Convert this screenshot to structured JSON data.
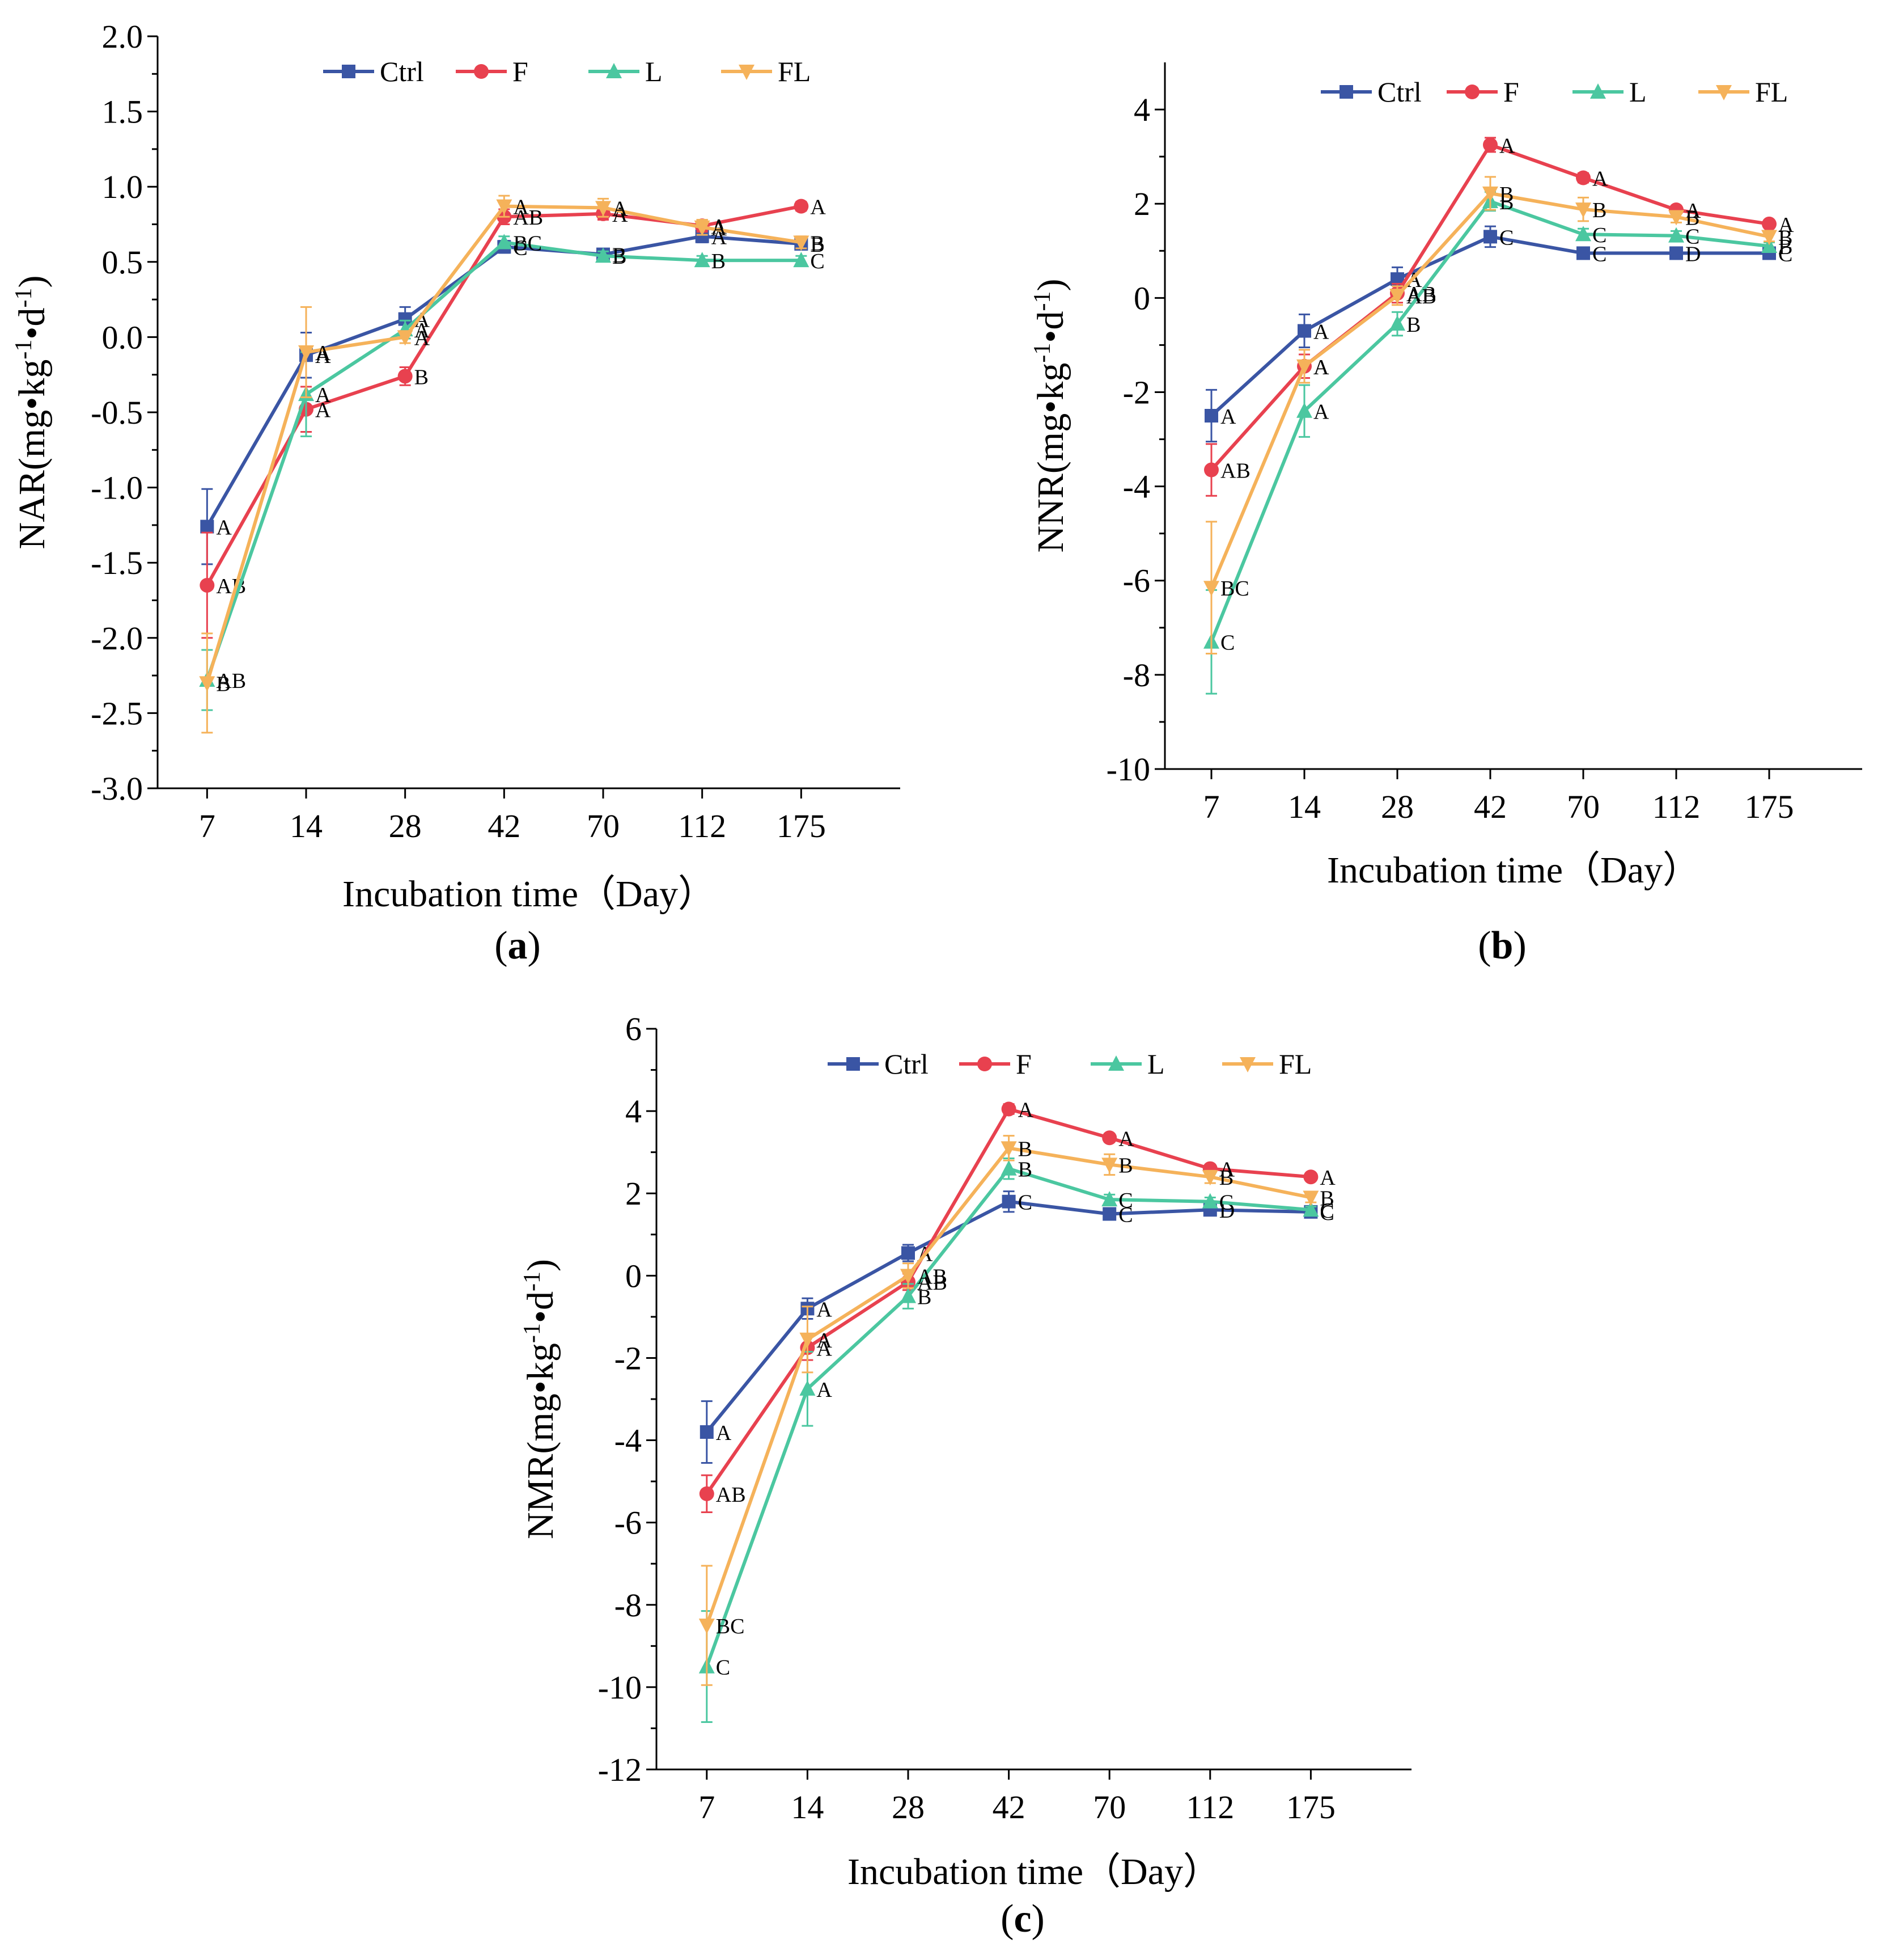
{
  "colors": {
    "Ctrl": "#3a55a4",
    "F": "#e8414f",
    "L": "#4bc7a0",
    "FL": "#f5b25a"
  },
  "legend_labels": [
    "Ctrl",
    "F",
    "L",
    "FL"
  ],
  "chart_data": [
    {
      "id": "a",
      "type": "line",
      "panel_label": "(a)",
      "panel_letter": "a",
      "xlabel": "Incubation time（Day）",
      "ylabel_parts": [
        "NAR(mg•kg",
        "-1",
        "•d",
        "-1",
        ")"
      ],
      "categories": [
        "7",
        "14",
        "28",
        "42",
        "70",
        "112",
        "175"
      ],
      "ylim": [
        -3.0,
        2.0
      ],
      "yticks": [
        "-3.0",
        "-2.5",
        "-2.0",
        "-1.5",
        "-1.0",
        "-0.5",
        "0.0",
        "0.5",
        "1.0",
        "1.5",
        "2.0"
      ],
      "ytick_values": [
        -3.0,
        -2.5,
        -2.0,
        -1.5,
        -1.0,
        -0.5,
        0.0,
        0.5,
        1.0,
        1.5,
        2.0
      ],
      "series": [
        {
          "name": "Ctrl",
          "values": [
            -1.26,
            -0.12,
            0.12,
            0.6,
            0.55,
            0.67,
            0.62
          ],
          "errors": [
            0.25,
            0.15,
            0.08,
            0.04,
            0.03,
            0.04,
            0.03
          ],
          "letters": [
            "A",
            "A",
            "A",
            "C",
            "B",
            "A",
            "B"
          ]
        },
        {
          "name": "F",
          "values": [
            -1.65,
            -0.48,
            -0.26,
            0.8,
            0.82,
            0.74,
            0.87
          ],
          "errors": [
            0.35,
            0.15,
            0.06,
            0.05,
            0.04,
            0.04,
            0.03
          ],
          "letters": [
            "AB",
            "A",
            "B",
            "AB",
            "A",
            "A",
            "A"
          ]
        },
        {
          "name": "L",
          "values": [
            -2.28,
            -0.38,
            0.05,
            0.63,
            0.54,
            0.51,
            0.51
          ],
          "errors": [
            0.2,
            0.28,
            0.06,
            0.04,
            0.03,
            0.03,
            0.03
          ],
          "letters": [
            "AB",
            "A",
            "A",
            "BC",
            "B",
            "B",
            "C"
          ]
        },
        {
          "name": "FL",
          "values": [
            -2.3,
            -0.1,
            0.0,
            0.87,
            0.86,
            0.73,
            0.63
          ],
          "errors": [
            0.33,
            0.3,
            0.04,
            0.07,
            0.06,
            0.05,
            0.04
          ],
          "letters": [
            "B",
            "A",
            "A",
            "A",
            "A",
            "A",
            "B"
          ]
        }
      ]
    },
    {
      "id": "b",
      "type": "line",
      "panel_label": "(b)",
      "panel_letter": "b",
      "xlabel": "Incubation time（Day）",
      "ylabel_parts": [
        "NNR(mg•kg",
        "-1",
        "•d",
        "-1",
        ")"
      ],
      "categories": [
        "7",
        "14",
        "28",
        "42",
        "70",
        "112",
        "175"
      ],
      "ylim": [
        -10,
        5
      ],
      "yticks": [
        "-10",
        "-8",
        "-6",
        "-4",
        "-2",
        "0",
        "2",
        "4"
      ],
      "ytick_values": [
        -10,
        -8,
        -6,
        -4,
        -2,
        0,
        2,
        4
      ],
      "series": [
        {
          "name": "Ctrl",
          "values": [
            -2.5,
            -0.7,
            0.4,
            1.3,
            0.95,
            0.95,
            0.95
          ],
          "errors": [
            0.55,
            0.35,
            0.25,
            0.22,
            0.08,
            0.08,
            0.08
          ],
          "letters": [
            "A",
            "A",
            "A",
            "C",
            "C",
            "D",
            "C"
          ]
        },
        {
          "name": "F",
          "values": [
            -3.65,
            -1.45,
            0.1,
            3.25,
            2.55,
            1.87,
            1.57
          ],
          "errors": [
            0.55,
            0.25,
            0.2,
            0.15,
            0.1,
            0.08,
            0.08
          ],
          "letters": [
            "AB",
            "A",
            "AB",
            "A",
            "A",
            "A",
            "A"
          ]
        },
        {
          "name": "L",
          "values": [
            -7.3,
            -2.4,
            -0.55,
            2.05,
            1.35,
            1.32,
            1.1
          ],
          "errors": [
            1.1,
            0.55,
            0.25,
            0.2,
            0.12,
            0.1,
            0.08
          ],
          "letters": [
            "C",
            "A",
            "B",
            "B",
            "C",
            "C",
            "B"
          ]
        },
        {
          "name": "FL",
          "values": [
            -6.15,
            -1.45,
            0.05,
            2.22,
            1.88,
            1.72,
            1.3
          ],
          "errors": [
            1.4,
            0.35,
            0.2,
            0.35,
            0.25,
            0.12,
            0.1
          ],
          "letters": [
            "BC",
            "A",
            "AB",
            "B",
            "B",
            "B",
            "B"
          ]
        }
      ]
    },
    {
      "id": "c",
      "type": "line",
      "panel_label": "(c)",
      "panel_letter": "c",
      "xlabel": "Incubation time（Day）",
      "ylabel_parts": [
        "NMR(mg•kg",
        "-1",
        "•d",
        "-1",
        ")"
      ],
      "categories": [
        "7",
        "14",
        "28",
        "42",
        "70",
        "112",
        "175"
      ],
      "ylim": [
        -12,
        6
      ],
      "yticks": [
        "-12",
        "-10",
        "-8",
        "-6",
        "-4",
        "-2",
        "0",
        "2",
        "4",
        "6"
      ],
      "ytick_values": [
        -12,
        -10,
        -8,
        -6,
        -4,
        -2,
        0,
        2,
        4,
        6
      ],
      "series": [
        {
          "name": "Ctrl",
          "values": [
            -3.8,
            -0.8,
            0.55,
            1.8,
            1.5,
            1.6,
            1.55
          ],
          "errors": [
            0.75,
            0.25,
            0.2,
            0.25,
            0.08,
            0.08,
            0.08
          ],
          "letters": [
            "A",
            "A",
            "A",
            "C",
            "C",
            "D",
            "C"
          ]
        },
        {
          "name": "F",
          "values": [
            -5.3,
            -1.75,
            -0.15,
            4.05,
            3.35,
            2.6,
            2.4
          ],
          "errors": [
            0.45,
            0.3,
            0.2,
            0.12,
            0.1,
            0.1,
            0.08
          ],
          "letters": [
            "AB",
            "A",
            "AB",
            "A",
            "A",
            "A",
            "A"
          ]
        },
        {
          "name": "L",
          "values": [
            -9.5,
            -2.75,
            -0.5,
            2.6,
            1.85,
            1.8,
            1.6
          ],
          "errors": [
            1.35,
            0.9,
            0.3,
            0.25,
            0.12,
            0.1,
            0.08
          ],
          "letters": [
            "C",
            "A",
            "B",
            "B",
            "C",
            "C",
            "C"
          ]
        },
        {
          "name": "FL",
          "values": [
            -8.5,
            -1.55,
            0.0,
            3.1,
            2.7,
            2.4,
            1.9
          ],
          "errors": [
            1.45,
            0.8,
            0.3,
            0.3,
            0.25,
            0.15,
            0.12
          ],
          "letters": [
            "BC",
            "A",
            "AB",
            "B",
            "B",
            "B",
            "B"
          ]
        }
      ]
    }
  ]
}
